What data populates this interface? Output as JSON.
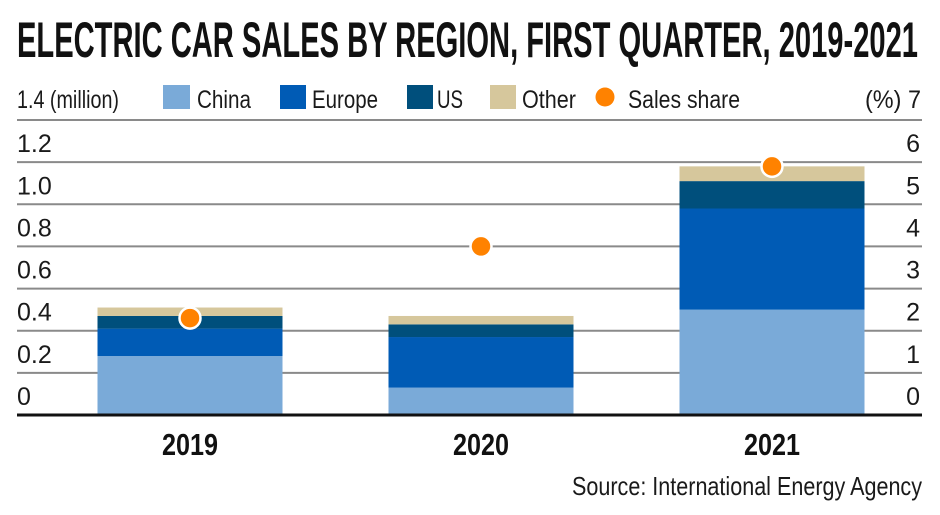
{
  "chart_data": {
    "type": "bar",
    "stacked": true,
    "title": "ELECTRIC CAR SALES BY REGION, FIRST QUARTER, 2019-2021",
    "ylabel": "(million)",
    "y2label": "(%)",
    "categories": [
      "2019",
      "2020",
      "2021"
    ],
    "ylim": [
      0,
      1.4
    ],
    "y2lim": [
      0,
      7
    ],
    "yticks": [
      "0",
      "0.2",
      "0.4",
      "0.6",
      "0.8",
      "1.0",
      "1.2",
      "1.4"
    ],
    "y2ticks": [
      "0",
      "1",
      "2",
      "3",
      "4",
      "5",
      "6",
      "7"
    ],
    "grid": true,
    "legend_position": "top",
    "series": [
      {
        "name": "China",
        "color": "#7aaad8",
        "values": [
          0.28,
          0.13,
          0.5
        ]
      },
      {
        "name": "Europe",
        "color": "#005bb5",
        "values": [
          0.13,
          0.24,
          0.48
        ]
      },
      {
        "name": "US",
        "color": "#004f7c",
        "values": [
          0.06,
          0.06,
          0.13
        ]
      },
      {
        "name": "Other",
        "color": "#d6c79c",
        "values": [
          0.04,
          0.04,
          0.07
        ]
      }
    ],
    "overlay": {
      "name": "Sales share",
      "type": "scatter",
      "axis": "right",
      "unit": "%",
      "color": "#ff8200",
      "values": [
        2.3,
        4.0,
        5.9
      ]
    },
    "source": "Source: International Energy Agency"
  },
  "legend": {
    "y_axis_top_label": "1.4 (million)",
    "y2_axis_top_label": "(%) 7",
    "items": [
      "China",
      "Europe",
      "US",
      "Other",
      "Sales share"
    ]
  }
}
